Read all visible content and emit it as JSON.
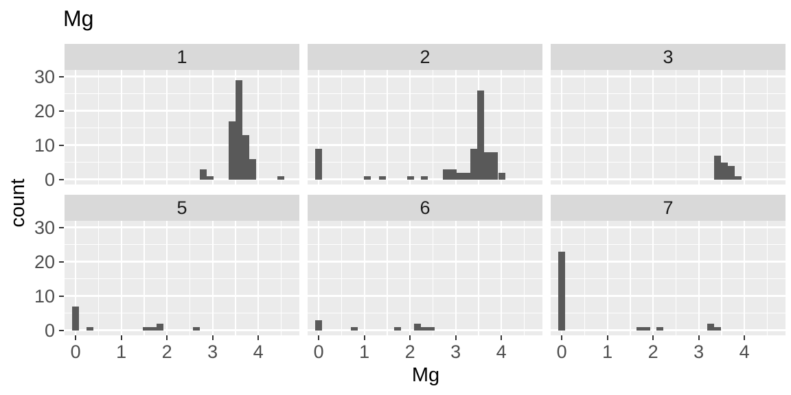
{
  "chart_data": {
    "type": "bar",
    "subtype": "faceted-histogram",
    "title": "Mg",
    "xlabel": "Mg",
    "ylabel": "count",
    "x_tick_labels": [
      "0",
      "1",
      "2",
      "3",
      "4"
    ],
    "x_tick_values": [
      0,
      1,
      2,
      3,
      4
    ],
    "y_tick_labels": [
      "0",
      "10",
      "20",
      "30"
    ],
    "y_tick_values": [
      0,
      10,
      20,
      30
    ],
    "y_minor_values": [
      5,
      15,
      25
    ],
    "x_minor_values": [
      0.5,
      1.5,
      2.5,
      3.5,
      4.5
    ],
    "xlim": [
      -0.244,
      4.9
    ],
    "ylim": [
      -1.5,
      31.9
    ],
    "binwidth": 0.15,
    "grid": "on",
    "legend": "none",
    "facets": [
      {
        "label": "1",
        "row": 0,
        "col": 0,
        "bars": [
          {
            "center": 2.8,
            "count": 3
          },
          {
            "center": 2.95,
            "count": 1
          },
          {
            "center": 3.42,
            "count": 17
          },
          {
            "center": 3.57,
            "count": 29
          },
          {
            "center": 3.72,
            "count": 13
          },
          {
            "center": 3.87,
            "count": 6
          },
          {
            "center": 4.5,
            "count": 1
          }
        ]
      },
      {
        "label": "2",
        "row": 0,
        "col": 1,
        "bars": [
          {
            "center": 0.0,
            "count": 9
          },
          {
            "center": 1.06,
            "count": 1
          },
          {
            "center": 1.39,
            "count": 1
          },
          {
            "center": 2.01,
            "count": 1
          },
          {
            "center": 2.32,
            "count": 1
          },
          {
            "center": 2.8,
            "count": 3
          },
          {
            "center": 2.95,
            "count": 3
          },
          {
            "center": 3.1,
            "count": 2
          },
          {
            "center": 3.25,
            "count": 2
          },
          {
            "center": 3.4,
            "count": 9
          },
          {
            "center": 3.55,
            "count": 26
          },
          {
            "center": 3.7,
            "count": 8
          },
          {
            "center": 3.85,
            "count": 8
          },
          {
            "center": 4.01,
            "count": 2
          }
        ]
      },
      {
        "label": "3",
        "row": 0,
        "col": 2,
        "bars": [
          {
            "center": 3.41,
            "count": 7
          },
          {
            "center": 3.56,
            "count": 5
          },
          {
            "center": 3.71,
            "count": 4
          },
          {
            "center": 3.86,
            "count": 1
          }
        ]
      },
      {
        "label": "5",
        "row": 1,
        "col": 0,
        "bars": [
          {
            "center": 0.0,
            "count": 7
          },
          {
            "center": 0.31,
            "count": 1
          },
          {
            "center": 1.55,
            "count": 1
          },
          {
            "center": 1.7,
            "count": 1
          },
          {
            "center": 1.85,
            "count": 2
          },
          {
            "center": 2.64,
            "count": 1
          }
        ]
      },
      {
        "label": "6",
        "row": 1,
        "col": 1,
        "bars": [
          {
            "center": 0.0,
            "count": 3
          },
          {
            "center": 0.78,
            "count": 1
          },
          {
            "center": 1.72,
            "count": 1
          },
          {
            "center": 2.16,
            "count": 2
          },
          {
            "center": 2.31,
            "count": 1
          },
          {
            "center": 2.46,
            "count": 1
          }
        ]
      },
      {
        "label": "7",
        "row": 1,
        "col": 2,
        "bars": [
          {
            "center": 0.0,
            "count": 23
          },
          {
            "center": 1.71,
            "count": 1
          },
          {
            "center": 1.86,
            "count": 1
          },
          {
            "center": 2.15,
            "count": 1
          },
          {
            "center": 3.26,
            "count": 2
          },
          {
            "center": 3.41,
            "count": 1
          }
        ]
      }
    ],
    "colors": {
      "bar_fill": "#595959",
      "panel_background": "#EBEBEB",
      "strip_background": "#D9D9D9",
      "gridline": "#FFFFFF",
      "axis_tick": "#333333",
      "tick_label_text": "#4D4D4D",
      "strip_text": "#1A1A1A",
      "title_text": "#000000"
    }
  }
}
